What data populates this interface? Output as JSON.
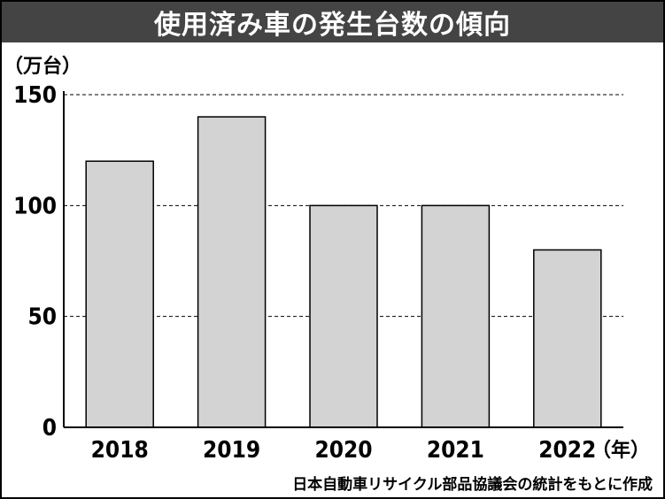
{
  "chart_data": {
    "type": "bar",
    "title": "使用済み車の発生台数の傾向",
    "ylabel": "（万台）",
    "xunit": "（年）",
    "categories": [
      "2018",
      "2019",
      "2020",
      "2021",
      "2022"
    ],
    "values": [
      120,
      140,
      100,
      100,
      80
    ],
    "ylim": [
      0,
      150
    ],
    "yticks": [
      0,
      50,
      100,
      150
    ],
    "grid": true,
    "source": "日本自動車リサイクル部品協議会の統計をもとに作成",
    "colors": {
      "bar": "#d3d3d3",
      "bar_stroke": "#000000",
      "title_bg": "#444444"
    }
  }
}
